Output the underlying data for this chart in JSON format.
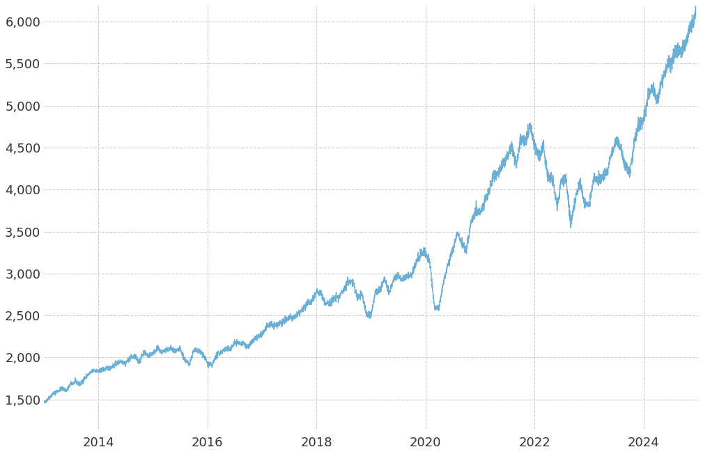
{
  "title": "",
  "line_color": "#6aafd6",
  "background_color": "#ffffff",
  "grid_color": "#cccccc",
  "grid_style": "--",
  "ylabel": "",
  "xlabel": "",
  "yticks": [
    1500,
    2000,
    2500,
    3000,
    3500,
    4000,
    4500,
    5000,
    5500,
    6000
  ],
  "xtick_years": [
    2014,
    2016,
    2018,
    2020,
    2022,
    2024
  ],
  "ylim": [
    1150,
    6200
  ],
  "line_width": 1.0,
  "tick_fontsize": 13,
  "tick_color": "#333333",
  "sp500_data": {
    "2013-01-02": 1462.42,
    "2013-02-01": 1512.12,
    "2013-03-01": 1569.19,
    "2013-04-01": 1597.57,
    "2013-05-01": 1630.74,
    "2013-06-03": 1606.28,
    "2013-07-01": 1685.73,
    "2013-08-01": 1706.87,
    "2013-09-03": 1681.55,
    "2013-10-01": 1756.54,
    "2013-11-01": 1805.81,
    "2013-12-02": 1848.36,
    "2014-01-02": 1831.98,
    "2014-02-03": 1859.45,
    "2014-03-03": 1872.34,
    "2014-04-01": 1885.52,
    "2014-05-01": 1924.97,
    "2014-06-02": 1960.23,
    "2014-07-01": 1930.67,
    "2014-08-01": 1996.74,
    "2014-09-02": 2011.36,
    "2014-10-01": 1946.16,
    "2014-11-03": 2067.56,
    "2014-12-01": 2018.05,
    "2015-01-02": 2058.2,
    "2015-02-02": 2104.5,
    "2015-03-02": 2067.89,
    "2015-04-01": 2085.51,
    "2015-05-01": 2107.39,
    "2015-06-01": 2063.11,
    "2015-07-01": 2103.84,
    "2015-08-03": 1972.18,
    "2015-09-01": 1920.03,
    "2015-10-01": 2079.61,
    "2015-11-02": 2080.41,
    "2015-12-01": 2043.94,
    "2016-01-04": 1922.03,
    "2016-02-01": 1904.42,
    "2016-03-01": 2021.95,
    "2016-04-01": 2065.3,
    "2016-05-02": 2096.95,
    "2016-06-01": 2098.86,
    "2016-07-01": 2173.6,
    "2016-08-01": 2170.95,
    "2016-09-01": 2168.27,
    "2016-10-03": 2126.15,
    "2016-11-01": 2198.81,
    "2016-12-01": 2238.83,
    "2017-01-03": 2278.87,
    "2017-02-01": 2363.64,
    "2017-03-01": 2395.96,
    "2017-04-03": 2384.2,
    "2017-05-01": 2415.82,
    "2017-06-01": 2430.06,
    "2017-07-03": 2470.3,
    "2017-08-01": 2471.65,
    "2017-09-01": 2519.36,
    "2017-10-02": 2575.26,
    "2017-11-01": 2647.58,
    "2017-12-01": 2673.61,
    "2018-01-02": 2789.8,
    "2018-02-01": 2762.13,
    "2018-03-01": 2640.87,
    "2018-04-02": 2648.05,
    "2018-05-01": 2705.27,
    "2018-06-01": 2718.37,
    "2018-07-02": 2816.29,
    "2018-08-01": 2901.52,
    "2018-09-04": 2901.13,
    "2018-10-01": 2711.74,
    "2018-11-01": 2760.17,
    "2018-12-03": 2506.85,
    "2019-01-02": 2510.03,
    "2019-02-01": 2784.49,
    "2019-03-01": 2803.69,
    "2019-04-01": 2945.83,
    "2019-05-01": 2752.06,
    "2019-06-03": 2941.76,
    "2019-07-01": 2980.38,
    "2019-08-01": 2932.05,
    "2019-09-03": 2976.74,
    "2019-10-01": 2977.62,
    "2019-11-01": 3140.98,
    "2019-12-02": 3230.78,
    "2020-01-02": 3257.85,
    "2020-02-03": 3090.23,
    "2020-03-02": 2584.59,
    "2020-04-01": 2584.59,
    "2020-05-01": 2912.43,
    "2020-06-01": 3100.29,
    "2020-07-01": 3271.12,
    "2020-08-03": 3500.31,
    "2020-09-01": 3363.46,
    "2020-10-01": 3269.96,
    "2020-11-02": 3621.63,
    "2020-12-01": 3756.07,
    "2021-01-04": 3714.24,
    "2021-02-01": 3871.0,
    "2021-03-01": 3972.89,
    "2021-04-01": 4181.17,
    "2021-05-03": 4204.11,
    "2021-06-01": 4297.5,
    "2021-07-01": 4395.26,
    "2021-08-02": 4522.68,
    "2021-09-01": 4307.54,
    "2021-10-01": 4605.38,
    "2021-11-01": 4567.0,
    "2021-12-01": 4766.18,
    "2022-01-03": 4515.55,
    "2022-02-01": 4373.94,
    "2022-03-01": 4530.41,
    "2022-04-01": 4131.93,
    "2022-05-02": 4132.15,
    "2022-06-01": 3785.38,
    "2022-07-01": 4130.29,
    "2022-08-01": 4118.63,
    "2022-09-01": 3585.62,
    "2022-10-03": 3901.06,
    "2022-11-01": 4080.11,
    "2022-12-01": 3839.5,
    "2023-01-03": 3824.14,
    "2023-02-01": 4119.21,
    "2023-03-01": 4109.31,
    "2023-04-03": 4169.48,
    "2023-05-01": 4205.45,
    "2023-06-01": 4450.38,
    "2023-07-03": 4588.96,
    "2023-08-01": 4507.66,
    "2023-09-01": 4288.7,
    "2023-10-02": 4193.8,
    "2023-11-01": 4567.8,
    "2023-12-01": 4769.83,
    "2024-01-02": 4845.65,
    "2024-02-01": 5096.27,
    "2024-03-01": 5243.77,
    "2024-04-01": 5035.69,
    "2024-05-01": 5277.51,
    "2024-06-03": 5460.48,
    "2024-07-01": 5522.3,
    "2024-08-01": 5648.4,
    "2024-09-03": 5648.4,
    "2024-10-01": 5705.45,
    "2024-11-01": 5893.62,
    "2024-12-02": 6032.38,
    "2024-12-16": 6090.27
  }
}
